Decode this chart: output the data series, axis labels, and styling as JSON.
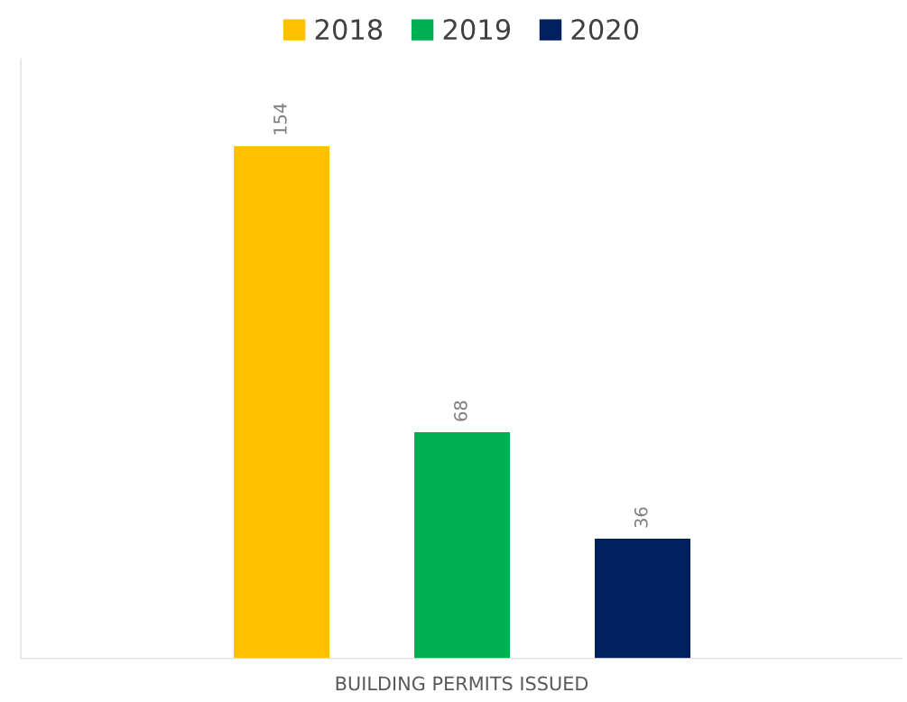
{
  "chart_data": {
    "type": "bar",
    "xlabel": "BUILDING PERMITS ISSUED",
    "categories": [
      null,
      null,
      null
    ],
    "stacked": true,
    "series": [
      {
        "name": "2018",
        "color": "#ffc000",
        "values": [
          154,
          null,
          null
        ]
      },
      {
        "name": "2019",
        "color": "#00b050",
        "values": [
          null,
          68,
          null
        ]
      },
      {
        "name": "2020",
        "color": "#002060",
        "values": [
          null,
          null,
          36
        ]
      }
    ],
    "tick_labels": false,
    "data_labels": true,
    "legend": "top"
  }
}
